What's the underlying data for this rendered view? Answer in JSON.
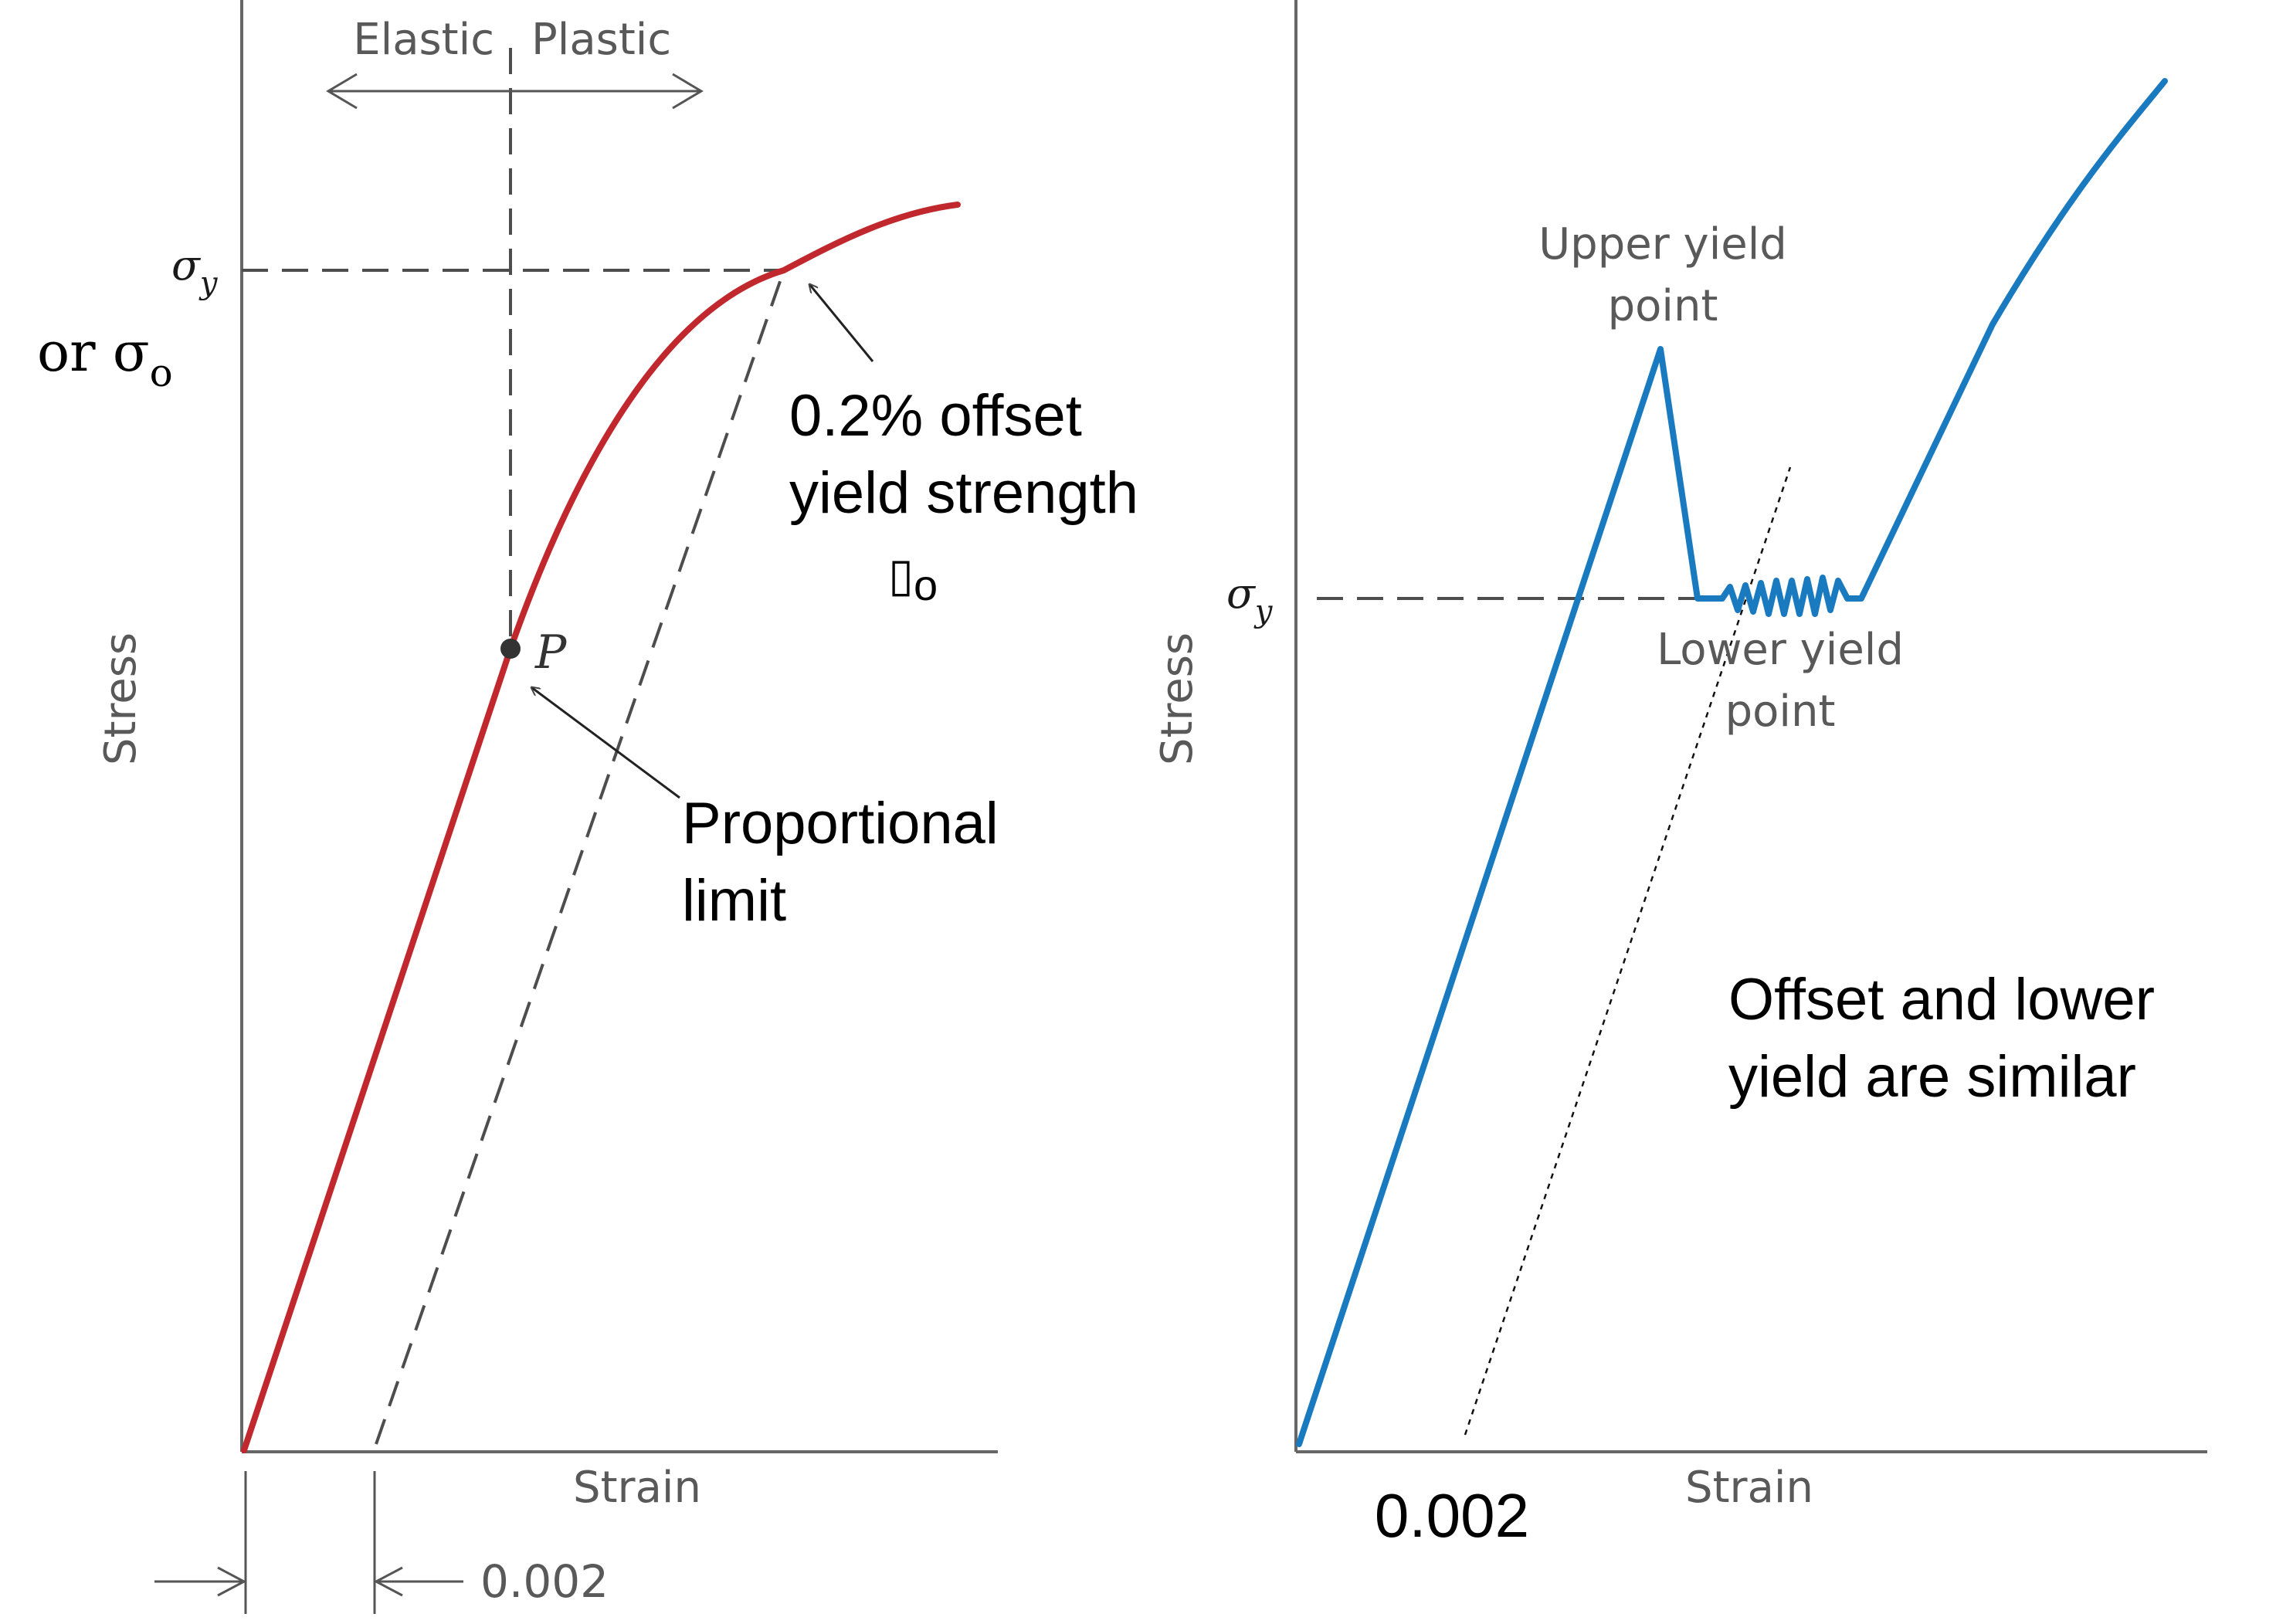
{
  "left_diagram": {
    "elastic_label": "Elastic",
    "plastic_label": "Plastic",
    "sigma_y_label": "σ",
    "sigma_y_subscript": "y",
    "or_sigma_label": "or σ",
    "or_sigma_subscript": "o",
    "offset_label_line1": "0.2% offset",
    "offset_label_line2": "yield strength",
    "offset_symbol": "▯",
    "offset_symbol_subscript": "o",
    "point_label": "P",
    "proportional_line1": "Proportional",
    "proportional_line2": "limit",
    "stress_label": "Stress",
    "strain_label": "Strain",
    "offset_value_label": "0.002",
    "curve_color": "#c0282d"
  },
  "right_diagram": {
    "upper_yield_line1": "Upper yield",
    "upper_yield_line2": "point",
    "lower_yield_line1": "Lower yield",
    "lower_yield_line2": "point",
    "sigma_y_label": "σ",
    "sigma_y_subscript": "y",
    "stress_label": "Stress",
    "strain_label": "Strain",
    "offset_value_label": "0.002",
    "note_line1": "Offset and lower",
    "note_line2": "yield are similar",
    "curve_color": "#1a7abf"
  }
}
